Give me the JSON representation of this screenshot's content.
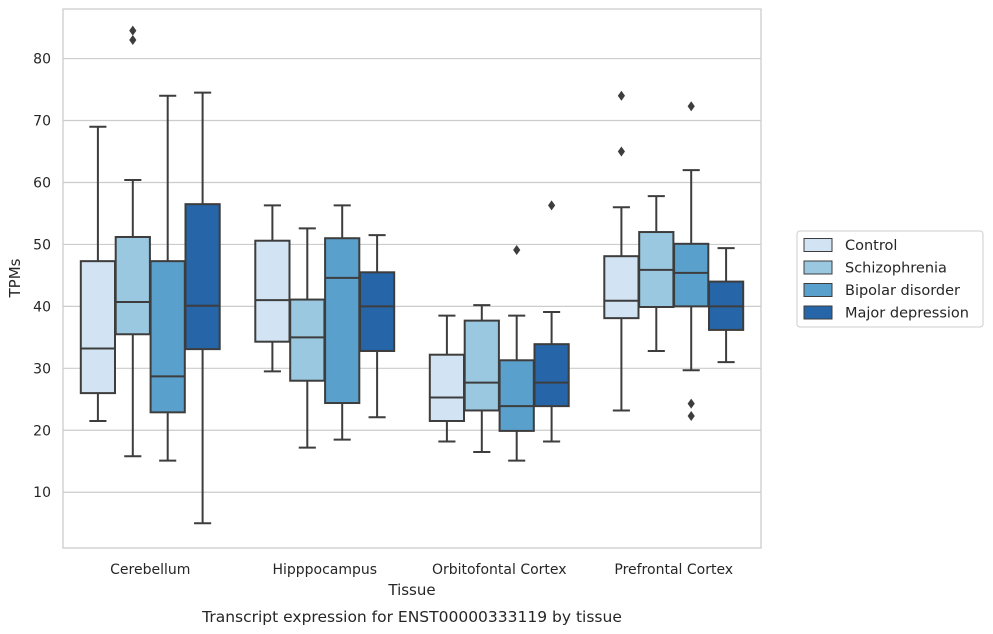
{
  "chart_data": {
    "type": "box",
    "xlabel": "Tissue",
    "ylabel": "TPMs",
    "caption": "Transcript expression for ENST00000333119 by tissue",
    "ylim": [
      1,
      88
    ],
    "yticks": [
      10,
      20,
      30,
      40,
      50,
      60,
      70,
      80
    ],
    "grid": "horizontal",
    "legend_position": "right",
    "categories": [
      "Cerebellum",
      "Hipppocampus",
      "Orbitofontal Cortex",
      "Prefrontal Cortex"
    ],
    "series": [
      {
        "name": "Control",
        "color": "#d2e3f3",
        "boxes": [
          {
            "whislo": 21.5,
            "q1": 26,
            "med": 33.2,
            "q3": 47.3,
            "whishi": 69,
            "fliers": []
          },
          {
            "whislo": 29.5,
            "q1": 34.3,
            "med": 41,
            "q3": 50.6,
            "whishi": 56.3,
            "fliers": []
          },
          {
            "whislo": 18.2,
            "q1": 21.5,
            "med": 25.3,
            "q3": 32.2,
            "whishi": 38.5,
            "fliers": []
          },
          {
            "whislo": 23.2,
            "q1": 38.1,
            "med": 40.9,
            "q3": 48.1,
            "whishi": 56,
            "fliers": [
              65,
              74
            ]
          }
        ]
      },
      {
        "name": "Schizophrenia",
        "color": "#9ac8e0",
        "boxes": [
          {
            "whislo": 15.8,
            "q1": 35.5,
            "med": 40.7,
            "q3": 51.2,
            "whishi": 60.4,
            "fliers": [
              83,
              84.5
            ]
          },
          {
            "whislo": 17.2,
            "q1": 28,
            "med": 35,
            "q3": 41.1,
            "whishi": 52.6,
            "fliers": []
          },
          {
            "whislo": 16.5,
            "q1": 23.2,
            "med": 27.7,
            "q3": 37.7,
            "whishi": 40.2,
            "fliers": []
          },
          {
            "whislo": 32.8,
            "q1": 39.9,
            "med": 45.9,
            "q3": 52,
            "whishi": 57.8,
            "fliers": []
          }
        ]
      },
      {
        "name": "Bipolar disorder",
        "color": "#5aa0cd",
        "boxes": [
          {
            "whislo": 15.1,
            "q1": 22.9,
            "med": 28.7,
            "q3": 47.3,
            "whishi": 74,
            "fliers": []
          },
          {
            "whislo": 18.5,
            "q1": 24.4,
            "med": 44.6,
            "q3": 51,
            "whishi": 56.3,
            "fliers": []
          },
          {
            "whislo": 15.1,
            "q1": 19.9,
            "med": 23.9,
            "q3": 31.3,
            "whishi": 38.5,
            "fliers": [
              49.1
            ]
          },
          {
            "whislo": 29.7,
            "q1": 40,
            "med": 45.4,
            "q3": 50.1,
            "whishi": 62,
            "fliers": [
              22.3,
              24.3,
              72.3
            ]
          }
        ]
      },
      {
        "name": "Major depression",
        "color": "#2565a8",
        "boxes": [
          {
            "whislo": 5,
            "q1": 33.1,
            "med": 40.1,
            "q3": 56.5,
            "whishi": 74.5,
            "fliers": []
          },
          {
            "whislo": 22.1,
            "q1": 32.8,
            "med": 40,
            "q3": 45.5,
            "whishi": 51.5,
            "fliers": []
          },
          {
            "whislo": 18.2,
            "q1": 23.9,
            "med": 27.7,
            "q3": 33.9,
            "whishi": 39.1,
            "fliers": [
              56.3
            ]
          },
          {
            "whislo": 31,
            "q1": 36.2,
            "med": 40,
            "q3": 44,
            "whishi": 49.4,
            "fliers": []
          }
        ]
      }
    ]
  }
}
